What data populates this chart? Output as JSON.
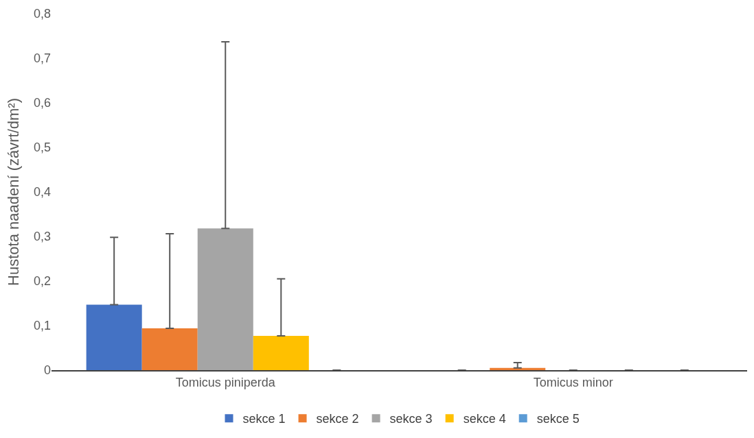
{
  "chart_data": {
    "type": "bar",
    "ylabel": "Hustota naadení (závrt/dm²)",
    "categories": [
      "Tomicus piniperda",
      "Tomicus minor"
    ],
    "series": [
      {
        "name": "sekce 1",
        "color": "#4472c4",
        "values": [
          0.147,
          0
        ],
        "errors": [
          [
            0.147,
            0.298
          ],
          null
        ]
      },
      {
        "name": "sekce 2",
        "color": "#ed7d31",
        "values": [
          0.094,
          0.005
        ],
        "errors": [
          [
            0.094,
            0.306
          ],
          [
            0.005,
            0.017
          ]
        ]
      },
      {
        "name": "sekce 3",
        "color": "#a5a5a5",
        "values": [
          0.318,
          0
        ],
        "errors": [
          [
            0.318,
            0.737
          ],
          null
        ]
      },
      {
        "name": "sekce 4",
        "color": "#ffc000",
        "values": [
          0.077,
          0
        ],
        "errors": [
          [
            0.077,
            0.205
          ],
          null
        ]
      },
      {
        "name": "sekce 5",
        "color": "#5b9bd5",
        "values": [
          0,
          0
        ],
        "errors": [
          null,
          null
        ]
      }
    ],
    "ylim": [
      0,
      0.8
    ],
    "yticks": [
      {
        "value": 0,
        "label": "0"
      },
      {
        "value": 0.1,
        "label": "0,1"
      },
      {
        "value": 0.2,
        "label": "0,2"
      },
      {
        "value": 0.3,
        "label": "0,3"
      },
      {
        "value": 0.4,
        "label": "0,4"
      },
      {
        "value": 0.5,
        "label": "0,5"
      },
      {
        "value": 0.6,
        "label": "0,6"
      },
      {
        "value": 0.7,
        "label": "0,7"
      },
      {
        "value": 0.8,
        "label": "0,8"
      }
    ],
    "grid": false,
    "legend": "bottom"
  }
}
